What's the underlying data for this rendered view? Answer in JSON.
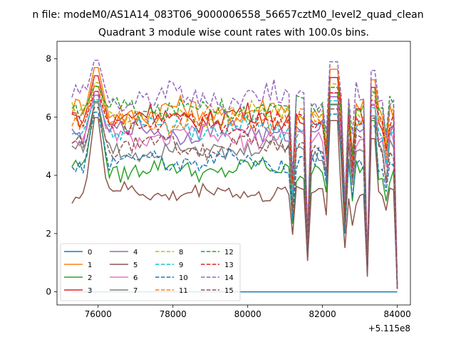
{
  "chart_data": {
    "type": "line",
    "suptitle": "n file: modeM0/AS1A14_083T06_9000006558_56657cztM0_level2_quad_clean",
    "title": "Quadrant 3 module wise count rates with 100.0s bins.",
    "xlabel": "",
    "ylabel": "",
    "x_offset_label": "+5.115e8",
    "xlim": [
      74900,
      84350
    ],
    "ylim": [
      -0.45,
      8.6
    ],
    "x_ticks": [
      76000,
      78000,
      80000,
      82000,
      84000
    ],
    "x_tick_labels": [
      "76000",
      "78000",
      "80000",
      "82000",
      "84000"
    ],
    "y_ticks": [
      0,
      2,
      4,
      6,
      8
    ],
    "y_tick_labels": [
      "0",
      "2",
      "4",
      "6",
      "8"
    ],
    "x_start": 75300,
    "x_step": 100,
    "colors": [
      "#1f77b4",
      "#ff7f0e",
      "#2ca02c",
      "#d62728",
      "#9467bd",
      "#8c564b",
      "#e377c2",
      "#7f7f7f",
      "#bcbd22",
      "#17becf"
    ],
    "legend": {
      "location": "lower-left",
      "ncol": 4,
      "entries": [
        "0",
        "1",
        "2",
        "3",
        "4",
        "5",
        "6",
        "7",
        "8",
        "9",
        "10",
        "11",
        "12",
        "13",
        "14",
        "15"
      ]
    },
    "series": [
      {
        "name": "0",
        "style": "solid",
        "color": "#1f77b4",
        "values": [
          0,
          0,
          0,
          0,
          0,
          0,
          0,
          0,
          0,
          0,
          0,
          0,
          0,
          0,
          0,
          0,
          0,
          0,
          0,
          0,
          0,
          0,
          0,
          0,
          0,
          0,
          0,
          0,
          0,
          0,
          0,
          0,
          0,
          0,
          0,
          0,
          0,
          0,
          0,
          0,
          0,
          0,
          0,
          0,
          0,
          0,
          0,
          0,
          0,
          0,
          0,
          0,
          0,
          0,
          0,
          0,
          0,
          0,
          0,
          0,
          0,
          0,
          0,
          0,
          0,
          0,
          0,
          0,
          0,
          0,
          0,
          0,
          0,
          0,
          0,
          0,
          0,
          0,
          0,
          0,
          0,
          0,
          0,
          0,
          0,
          0,
          0,
          0
        ]
      },
      {
        "name": "1",
        "style": "solid",
        "color": "#ff7f0e",
        "base": 6.2,
        "amp": 0.35,
        "peak": 8.0,
        "dips": 0.95
      },
      {
        "name": "2",
        "style": "solid",
        "color": "#2ca02c",
        "base": 4.2,
        "amp": 0.3,
        "peak": 7.0,
        "dips": 0.95
      },
      {
        "name": "3",
        "style": "solid",
        "color": "#d62728",
        "base": 6.0,
        "amp": 0.35,
        "peak": 7.7,
        "dips": 0.95
      },
      {
        "name": "4",
        "style": "solid",
        "color": "#9467bd",
        "base": 5.5,
        "amp": 0.3,
        "peak": 7.0,
        "dips": 0.95
      },
      {
        "name": "5",
        "style": "solid",
        "color": "#8c564b",
        "base": 3.4,
        "amp": 0.25,
        "peak": 6.5,
        "dips": 0.95
      },
      {
        "name": "6",
        "style": "solid",
        "color": "#e377c2",
        "base": 5.3,
        "amp": 0.3,
        "peak": 7.2,
        "dips": 0.95
      },
      {
        "name": "7",
        "style": "solid",
        "color": "#7f7f7f",
        "base": 4.9,
        "amp": 0.3,
        "peak": 6.8,
        "dips": 0.95
      },
      {
        "name": "8",
        "style": "dashed",
        "color": "#bcbd22",
        "base": 6.1,
        "amp": 0.35,
        "peak": 7.4,
        "dips": 0.95
      },
      {
        "name": "9",
        "style": "dashed",
        "color": "#17becf",
        "base": 5.6,
        "amp": 0.3,
        "peak": 6.8,
        "dips": 0.95
      },
      {
        "name": "10",
        "style": "dashed",
        "color": "#1f77b4",
        "base": 4.5,
        "amp": 0.3,
        "peak": 6.5,
        "dips": 0.95
      },
      {
        "name": "11",
        "style": "dashed",
        "color": "#ff7f0e",
        "base": 5.9,
        "amp": 0.35,
        "peak": 7.3,
        "dips": 0.95
      },
      {
        "name": "12",
        "style": "dashed",
        "color": "#2ca02c",
        "base": 6.3,
        "amp": 0.3,
        "peak": 7.2,
        "dips": 0.95
      },
      {
        "name": "13",
        "style": "dashed",
        "color": "#d62728",
        "base": 5.8,
        "amp": 0.3,
        "peak": 7.1,
        "dips": 0.95
      },
      {
        "name": "14",
        "style": "dashed",
        "color": "#9467bd",
        "base": 6.7,
        "amp": 0.4,
        "peak": 8.2,
        "dips": 0.95
      },
      {
        "name": "15",
        "style": "dashed",
        "color": "#8c564b",
        "base": 5.0,
        "amp": 0.3,
        "peak": 6.6,
        "dips": 0.95
      }
    ],
    "notes": "Series 1-15 noisy count rates sampled every 100 s from 75300 to 83900; sharp drops near 81600, 82600, 83200 and to ~0 at 84000."
  }
}
